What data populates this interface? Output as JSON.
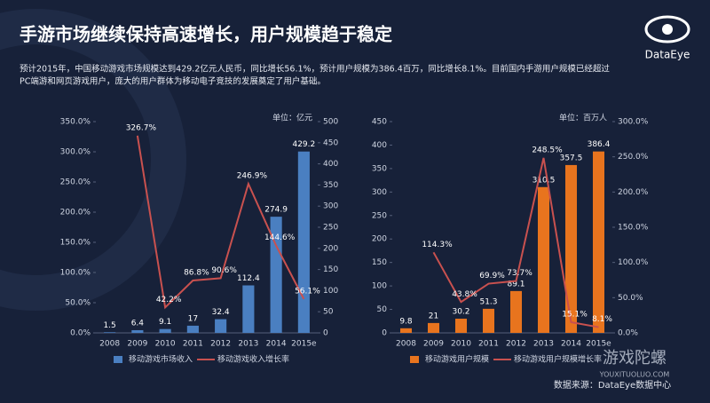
{
  "title": "手游市场继续保持高速增长，用户规模趋于稳定",
  "logo": "DataEye",
  "subtitle": [
    "预计2015年，中国移动游戏市场规模达到429.2亿元人民币，同比增长56.1%，预计用户规模为386.4百万，同比增长8.1%。目前国内手游用户规模已经超过",
    "PC端游和网页游戏用户，庞大的用户群体为移动电子竞技的发展奠定了用户基础。"
  ],
  "source": "数据来源：DataEye数据中心",
  "watermark": [
    "游戏陀螺",
    "YOUXITUOLUO.COM"
  ],
  "chart_data": [
    {
      "type": "bar",
      "unit": "单位：亿元",
      "categories": [
        "2008",
        "2009",
        "2010",
        "2011",
        "2012",
        "2013",
        "2014",
        "2015e"
      ],
      "series": [
        {
          "name": "移动游戏市场收入",
          "type": "bar",
          "axis": "y2",
          "color": "#4a7fc1",
          "values": [
            1.5,
            6.4,
            9.1,
            17,
            32.4,
            112.4,
            274.9,
            429.2
          ]
        },
        {
          "name": "移动游戏收入增长率",
          "type": "line",
          "axis": "y",
          "color": "#c9514f",
          "values": [
            null,
            326.7,
            42.2,
            86.8,
            90.6,
            246.9,
            144.6,
            56.1
          ],
          "value_labels": [
            null,
            "326.7%",
            "42.2%",
            "86.8%",
            "90.6%",
            "246.9%",
            "144.6%",
            "56.1%"
          ]
        }
      ],
      "ylim": [
        0,
        350
      ],
      "yticks": [
        {
          "value": 0,
          "label": "0.0%"
        },
        {
          "value": 50,
          "label": "50.0%"
        },
        {
          "value": 100,
          "label": "100.0%"
        },
        {
          "value": 150,
          "label": "150.0%"
        },
        {
          "value": 200,
          "label": "200.0%"
        },
        {
          "value": 250,
          "label": "250.0%"
        },
        {
          "value": 300,
          "label": "300.0%"
        },
        {
          "value": 350,
          "label": "350.0%"
        }
      ],
      "y2lim": [
        0,
        500
      ],
      "y2ticks": [
        0,
        50,
        100,
        150,
        200,
        250,
        300,
        350,
        400,
        450,
        500
      ]
    },
    {
      "type": "bar",
      "unit": "单位：百万人",
      "categories": [
        "2008",
        "2009",
        "2010",
        "2011",
        "2012",
        "2013",
        "2014",
        "2015e"
      ],
      "series": [
        {
          "name": "移动游戏用户规模",
          "type": "bar",
          "axis": "y",
          "color": "#e8741e",
          "values": [
            9.8,
            21,
            30.2,
            51.3,
            89.1,
            310.5,
            357.5,
            386.4
          ]
        },
        {
          "name": "移动游戏用户规模增长率",
          "type": "line",
          "axis": "y2",
          "color": "#c9514f",
          "values": [
            null,
            114.3,
            43.8,
            69.9,
            73.7,
            248.5,
            15.1,
            8.1
          ],
          "value_labels": [
            null,
            "114.3%",
            "43.8%",
            "69.9%",
            "73.7%",
            "248.5%",
            "15.1%",
            "8.1%"
          ]
        }
      ],
      "ylim": [
        0,
        450
      ],
      "yticks": [
        0,
        50,
        100,
        150,
        200,
        250,
        300,
        350,
        400,
        450
      ],
      "y2lim": [
        0,
        300
      ],
      "y2ticks": [
        {
          "value": 0,
          "label": "0.0%"
        },
        {
          "value": 50,
          "label": "50.0%"
        },
        {
          "value": 100,
          "label": "100.0%"
        },
        {
          "value": 150,
          "label": "150.0%"
        },
        {
          "value": 200,
          "label": "200.0%"
        },
        {
          "value": 250,
          "label": "250.0%"
        },
        {
          "value": 300,
          "label": "300.0%"
        }
      ]
    }
  ]
}
